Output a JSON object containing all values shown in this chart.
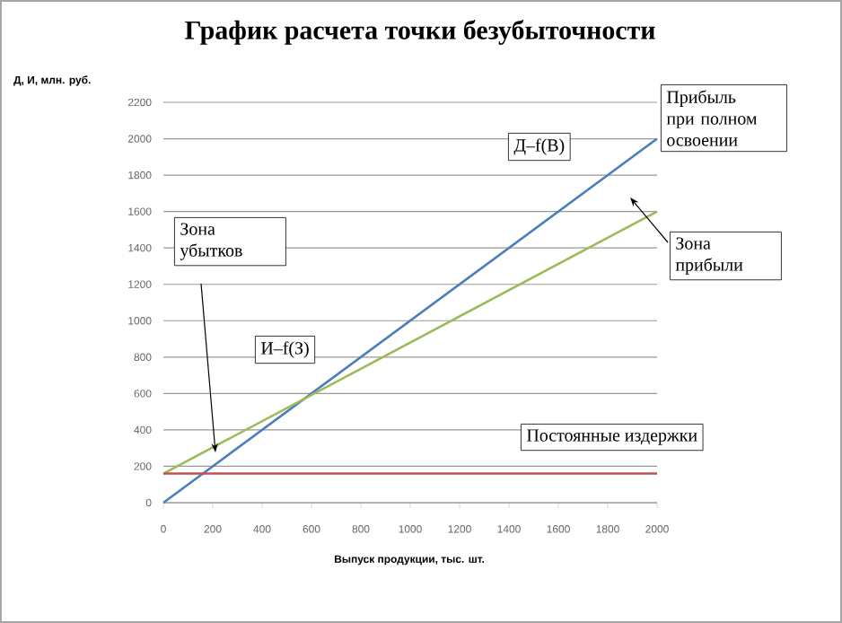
{
  "chart_data": {
    "type": "line",
    "title": "График расчета точки безубыточности",
    "ylabel": "Д, И, млн. руб.",
    "xlabel": "Выпуск продукции, тыс. шт.",
    "x": [
      0,
      2000
    ],
    "series": [
      {
        "name": "Д–f(В)",
        "color": "#4a7ebb",
        "values": [
          0,
          2000
        ]
      },
      {
        "name": "И–f(З)",
        "color": "#9bbb59",
        "values": [
          160,
          1600
        ]
      },
      {
        "name": "Постоянные издержки",
        "color": "#c0504d",
        "values": [
          160,
          160
        ]
      }
    ],
    "annotations": [
      "Зона убытков",
      "Зона прибыли",
      "Прибыль при полном освоении"
    ],
    "xlim": [
      0,
      2000
    ],
    "ylim": [
      0,
      2200
    ],
    "xticks": [
      0,
      200,
      400,
      600,
      800,
      1000,
      1200,
      1400,
      1600,
      1800,
      2000
    ],
    "yticks": [
      0,
      200,
      400,
      600,
      800,
      1000,
      1200,
      1400,
      1600,
      1800,
      2000,
      2200
    ],
    "grid": "y",
    "marker": "none",
    "line_style": "solid"
  }
}
